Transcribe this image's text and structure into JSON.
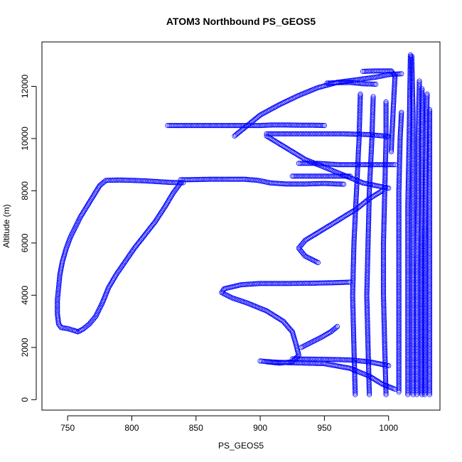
{
  "chart_data": {
    "type": "scatter",
    "title": "ATOM3 Northbound PS_GEOS5",
    "xlabel": "PS_GEOS5",
    "ylabel": "Altitude (m)",
    "xlim": [
      730,
      1040
    ],
    "ylim": [
      -400,
      13700
    ],
    "x_ticks": [
      750,
      800,
      850,
      900,
      950,
      1000
    ],
    "y_ticks": [
      0,
      2000,
      4000,
      6000,
      8000,
      10000,
      12000
    ],
    "grid": false,
    "legend": "none",
    "marker": "open-circle",
    "point_color": "#0000ff",
    "paths": [
      [
        [
          840,
          8310
        ],
        [
          830,
          8320
        ],
        [
          820,
          8350
        ],
        [
          810,
          8380
        ],
        [
          800,
          8400
        ],
        [
          790,
          8410
        ],
        [
          780,
          8400
        ],
        [
          775,
          8200
        ],
        [
          770,
          7800
        ],
        [
          765,
          7400
        ],
        [
          760,
          7000
        ],
        [
          756,
          6600
        ],
        [
          752,
          6200
        ],
        [
          749,
          5800
        ],
        [
          746,
          5300
        ],
        [
          744,
          4800
        ],
        [
          743,
          4300
        ],
        [
          742,
          3800
        ],
        [
          742,
          3300
        ],
        [
          743,
          2900
        ],
        [
          745,
          2760
        ],
        [
          750,
          2720
        ],
        [
          755,
          2650
        ],
        [
          758,
          2600
        ],
        [
          762,
          2700
        ],
        [
          767,
          2900
        ],
        [
          772,
          3200
        ],
        [
          777,
          3700
        ],
        [
          782,
          4300
        ],
        [
          788,
          4800
        ],
        [
          795,
          5300
        ],
        [
          802,
          5800
        ],
        [
          810,
          6300
        ],
        [
          818,
          6800
        ],
        [
          826,
          7400
        ],
        [
          832,
          7900
        ],
        [
          838,
          8300
        ]
      ],
      [
        [
          838,
          8420
        ],
        [
          850,
          8430
        ],
        [
          860,
          8440
        ],
        [
          875,
          8440
        ],
        [
          888,
          8440
        ],
        [
          898,
          8400
        ],
        [
          908,
          8300
        ],
        [
          920,
          8260
        ],
        [
          935,
          8260
        ],
        [
          950,
          8280
        ],
        [
          965,
          8250
        ]
      ],
      [
        [
          828,
          10500
        ],
        [
          840,
          10500
        ],
        [
          850,
          10500
        ],
        [
          860,
          10500
        ],
        [
          870,
          10500
        ],
        [
          880,
          10500
        ],
        [
          890,
          10500
        ],
        [
          900,
          10500
        ],
        [
          910,
          10520
        ],
        [
          920,
          10520
        ],
        [
          930,
          10510
        ],
        [
          940,
          10510
        ],
        [
          950,
          10500
        ]
      ],
      [
        [
          905,
          10180
        ],
        [
          920,
          10180
        ],
        [
          935,
          10180
        ],
        [
          950,
          10180
        ],
        [
          965,
          10180
        ],
        [
          985,
          10150
        ],
        [
          1000,
          10080
        ]
      ],
      [
        [
          880,
          10100
        ],
        [
          890,
          10500
        ],
        [
          900,
          10900
        ],
        [
          915,
          11300
        ],
        [
          930,
          11650
        ],
        [
          945,
          11950
        ],
        [
          960,
          12150
        ],
        [
          975,
          12250
        ],
        [
          990,
          12350
        ],
        [
          1000,
          12450
        ],
        [
          1010,
          12480
        ]
      ],
      [
        [
          952,
          12120
        ],
        [
          960,
          12140
        ],
        [
          970,
          12150
        ],
        [
          980,
          12100
        ],
        [
          990,
          12080
        ]
      ],
      [
        [
          980,
          12570
        ],
        [
          990,
          12590
        ],
        [
          1002,
          12590
        ],
        [
          1005,
          12400
        ],
        [
          1004,
          11500
        ],
        [
          1003,
          10500
        ],
        [
          1002,
          9500
        ]
      ],
      [
        [
          905,
          1450
        ],
        [
          915,
          1400
        ],
        [
          925,
          1450
        ],
        [
          930,
          1700
        ],
        [
          928,
          2100
        ],
        [
          925,
          2600
        ],
        [
          918,
          3000
        ],
        [
          905,
          3400
        ],
        [
          890,
          3700
        ],
        [
          878,
          3900
        ],
        [
          870,
          4100
        ],
        [
          872,
          4250
        ],
        [
          885,
          4400
        ],
        [
          900,
          4450
        ],
        [
          920,
          4450
        ],
        [
          940,
          4460
        ],
        [
          958,
          4480
        ],
        [
          970,
          4500
        ]
      ],
      [
        [
          900,
          1480
        ],
        [
          910,
          1440
        ],
        [
          920,
          1420
        ],
        [
          935,
          1400
        ],
        [
          950,
          1380
        ],
        [
          970,
          1200
        ],
        [
          985,
          900
        ],
        [
          995,
          600
        ],
        [
          1005,
          400
        ]
      ],
      [
        [
          945,
          5250
        ],
        [
          935,
          5500
        ],
        [
          930,
          5800
        ],
        [
          935,
          6100
        ],
        [
          945,
          6400
        ],
        [
          955,
          6700
        ],
        [
          965,
          7000
        ],
        [
          975,
          7300
        ],
        [
          985,
          7700
        ],
        [
          995,
          8000
        ]
      ],
      [
        [
          930,
          9050
        ],
        [
          945,
          9050
        ],
        [
          960,
          9000
        ],
        [
          975,
          9000
        ],
        [
          990,
          9000
        ],
        [
          1005,
          9000
        ]
      ],
      [
        [
          925,
          8560
        ],
        [
          935,
          8560
        ],
        [
          945,
          8560
        ],
        [
          955,
          8560
        ],
        [
          970,
          8560
        ]
      ],
      [
        [
          905,
          10100
        ],
        [
          915,
          9800
        ],
        [
          925,
          9500
        ],
        [
          935,
          9200
        ],
        [
          950,
          8900
        ],
        [
          965,
          8600
        ],
        [
          980,
          8300
        ],
        [
          1000,
          8100
        ]
      ],
      [
        [
          925,
          1560
        ],
        [
          940,
          1550
        ],
        [
          955,
          1540
        ],
        [
          970,
          1520
        ],
        [
          985,
          1450
        ],
        [
          1000,
          1300
        ]
      ],
      [
        [
          932,
          2000
        ],
        [
          940,
          2200
        ],
        [
          948,
          2400
        ],
        [
          955,
          2600
        ],
        [
          960,
          2800
        ]
      ],
      [
        [
          974,
          200
        ],
        [
          973,
          2000
        ],
        [
          972,
          4000
        ],
        [
          973,
          6000
        ],
        [
          975,
          8000
        ],
        [
          977,
          10000
        ],
        [
          978,
          11700
        ]
      ],
      [
        [
          985,
          200
        ],
        [
          984,
          2000
        ],
        [
          983,
          4000
        ],
        [
          984,
          6000
        ],
        [
          985,
          8000
        ],
        [
          987,
          10000
        ],
        [
          988,
          11600
        ]
      ],
      [
        [
          998,
          200
        ],
        [
          997,
          2000
        ],
        [
          996,
          4000
        ],
        [
          996,
          6000
        ],
        [
          997,
          8000
        ],
        [
          998,
          10000
        ],
        [
          998,
          11400
        ]
      ],
      [
        [
          1008,
          300
        ],
        [
          1008,
          2000
        ],
        [
          1008,
          4000
        ],
        [
          1008,
          6000
        ],
        [
          1008,
          8000
        ],
        [
          1009,
          10000
        ],
        [
          1010,
          11000
        ]
      ],
      [
        [
          1015,
          200
        ],
        [
          1015,
          2500
        ],
        [
          1015,
          5000
        ],
        [
          1015,
          7500
        ],
        [
          1016,
          10000
        ],
        [
          1017,
          13200
        ]
      ],
      [
        [
          1018,
          13150
        ],
        [
          1019,
          11000
        ],
        [
          1019,
          8000
        ],
        [
          1019,
          5000
        ],
        [
          1019,
          2500
        ],
        [
          1019,
          200
        ]
      ],
      [
        [
          1022,
          200
        ],
        [
          1022,
          2500
        ],
        [
          1022,
          5000
        ],
        [
          1023,
          7500
        ],
        [
          1023,
          10000
        ],
        [
          1024,
          12200
        ]
      ],
      [
        [
          1026,
          11900
        ],
        [
          1026,
          9000
        ],
        [
          1026,
          6000
        ],
        [
          1026,
          3000
        ],
        [
          1026,
          200
        ]
      ],
      [
        [
          1028,
          200
        ],
        [
          1028,
          3000
        ],
        [
          1028,
          6000
        ],
        [
          1029,
          9000
        ],
        [
          1030,
          11700
        ]
      ],
      [
        [
          1032,
          11100
        ],
        [
          1032,
          8500
        ],
        [
          1032,
          5500
        ],
        [
          1032,
          2500
        ],
        [
          1032,
          200
        ]
      ]
    ]
  }
}
